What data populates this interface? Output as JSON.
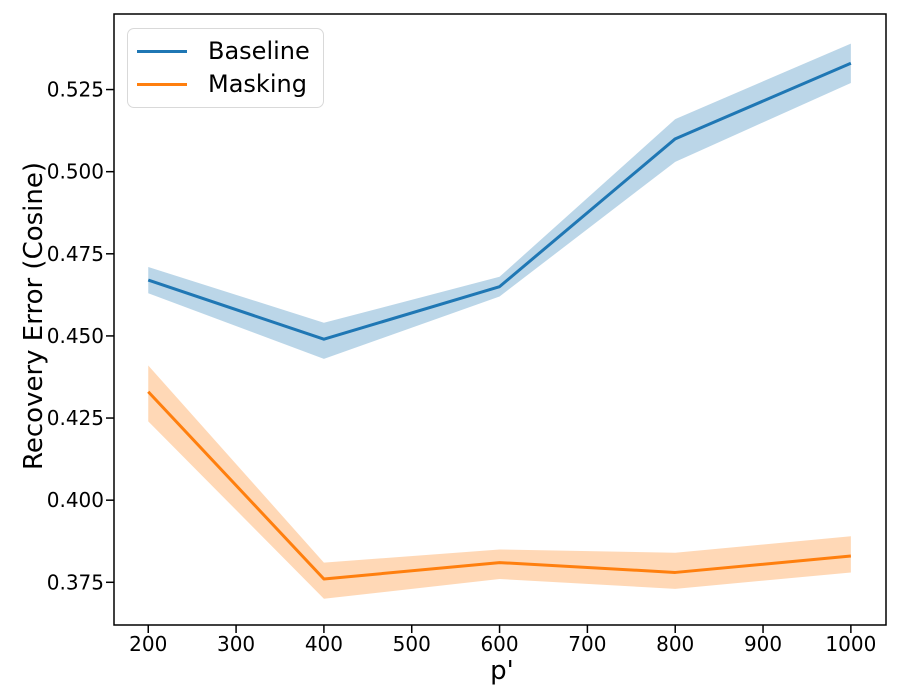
{
  "chart_data": {
    "type": "line",
    "title": "",
    "xlabel": "p'",
    "ylabel": "Recovery Error (Cosine)",
    "xlim": [
      161,
      1040
    ],
    "ylim": [
      0.362,
      0.548
    ],
    "grid": false,
    "legend_position": "upper left",
    "band_opacity": 0.3,
    "line_width": 3,
    "x_ticks": [
      200,
      300,
      400,
      500,
      600,
      700,
      800,
      900,
      1000
    ],
    "x_tick_labels": [
      "200",
      "300",
      "400",
      "500",
      "600",
      "700",
      "800",
      "900",
      "1000"
    ],
    "y_ticks": [
      0.375,
      0.4,
      0.425,
      0.45,
      0.475,
      0.5,
      0.525
    ],
    "y_tick_labels": [
      "0.375",
      "0.400",
      "0.425",
      "0.450",
      "0.475",
      "0.500",
      "0.525"
    ],
    "x": [
      200,
      400,
      600,
      800,
      1000
    ],
    "series": [
      {
        "name": "Baseline",
        "color": "#1f77b4",
        "values": [
          0.467,
          0.449,
          0.465,
          0.51,
          0.533
        ],
        "band_low": [
          0.463,
          0.443,
          0.462,
          0.503,
          0.527
        ],
        "band_high": [
          0.471,
          0.454,
          0.468,
          0.516,
          0.539
        ]
      },
      {
        "name": "Masking",
        "color": "#ff7f0e",
        "values": [
          0.433,
          0.376,
          0.381,
          0.378,
          0.383
        ],
        "band_low": [
          0.424,
          0.37,
          0.376,
          0.373,
          0.378
        ],
        "band_high": [
          0.441,
          0.381,
          0.385,
          0.384,
          0.389
        ]
      }
    ]
  }
}
